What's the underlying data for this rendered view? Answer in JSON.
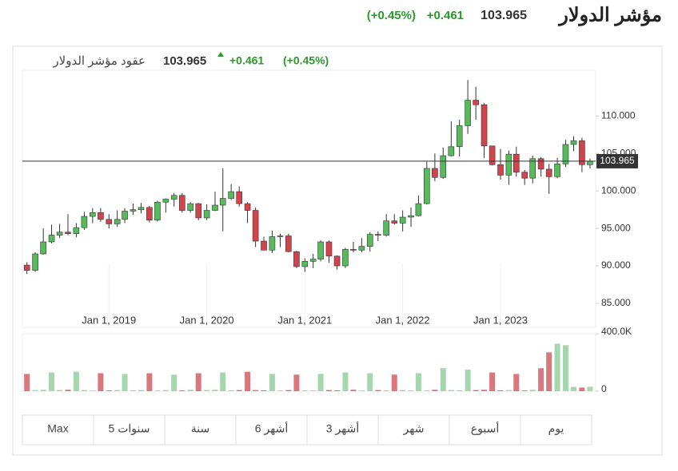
{
  "header": {
    "title": "مؤشر الدولار",
    "last": "103.965",
    "change": "+0.461",
    "change_pct": "(+0.45%)"
  },
  "chart_header": {
    "title": "عقود مؤشر الدولار",
    "last": "103.965",
    "change": "+0.461",
    "change_pct": "(+0.45%)"
  },
  "chart_data": {
    "type": "candlestick",
    "x": [
      "2018-03-01",
      "2018-04-01",
      "2018-05-01",
      "2018-06-01",
      "2018-07-01",
      "2018-08-01",
      "2018-09-01",
      "2018-10-01",
      "2018-11-01",
      "2018-12-01",
      "2019-01-01",
      "2019-02-01",
      "2019-03-01",
      "2019-04-01",
      "2019-05-01",
      "2019-06-01",
      "2019-07-01",
      "2019-08-01",
      "2019-09-01",
      "2019-10-01",
      "2019-11-01",
      "2019-12-01",
      "2020-01-01",
      "2020-02-01",
      "2020-03-01",
      "2020-04-01",
      "2020-05-01",
      "2020-06-01",
      "2020-07-01",
      "2020-08-01",
      "2020-09-01",
      "2020-10-01",
      "2020-11-01",
      "2020-12-01",
      "2021-01-01",
      "2021-02-01",
      "2021-03-01",
      "2021-04-01",
      "2021-05-01",
      "2021-06-01",
      "2021-07-01",
      "2021-08-01",
      "2021-09-01",
      "2021-10-01",
      "2021-11-01",
      "2021-12-01",
      "2022-01-01",
      "2022-02-01",
      "2022-03-01",
      "2022-04-01",
      "2022-05-01",
      "2022-06-01",
      "2022-07-01",
      "2022-08-01",
      "2022-09-01",
      "2022-10-01",
      "2022-11-01",
      "2022-12-01",
      "2023-01-01",
      "2023-02-01",
      "2023-03-01",
      "2023-04-01",
      "2023-05-01",
      "2023-06-01",
      "2023-07-01",
      "2023-08-01",
      "2023-09-01",
      "2023-10-01",
      "2023-11-01",
      "2023-12-01"
    ],
    "open": [
      90.1,
      89.4,
      91.6,
      93.2,
      94.1,
      94.5,
      94.3,
      95.1,
      96.6,
      97.1,
      96.2,
      95.6,
      96.2,
      97.3,
      97.5,
      97.8,
      96.1,
      98.5,
      98.9,
      99.4,
      97.4,
      98.3,
      96.4,
      97.4,
      98.1,
      99.0,
      99.9,
      98.3,
      97.4,
      93.3,
      92.1,
      93.9,
      94.0,
      91.9,
      89.9,
      90.6,
      90.9,
      93.2,
      91.3,
      90.0,
      92.2,
      92.1,
      92.6,
      94.2,
      94.1,
      96.0,
      95.7,
      96.5,
      96.7,
      98.3,
      103.0,
      101.8,
      104.7,
      105.9,
      108.7,
      112.1,
      111.5,
      106.0,
      103.5,
      102.1,
      104.9,
      102.5,
      101.7,
      104.3,
      102.9,
      101.9,
      103.6,
      106.2,
      106.7,
      103.5
    ],
    "high": [
      90.5,
      91.8,
      95.0,
      95.5,
      95.6,
      96.9,
      95.7,
      97.2,
      97.7,
      97.7,
      96.9,
      97.4,
      97.7,
      98.3,
      98.4,
      98.0,
      98.7,
      99.0,
      99.7,
      99.7,
      98.5,
      98.4,
      98.2,
      99.9,
      103.0,
      100.9,
      100.6,
      98.5,
      97.8,
      93.9,
      94.7,
      94.3,
      94.3,
      92.0,
      91.0,
      91.6,
      93.4,
      93.4,
      91.4,
      92.4,
      93.2,
      93.7,
      94.5,
      94.6,
      96.9,
      96.9,
      97.4,
      97.8,
      99.4,
      103.9,
      105.0,
      105.8,
      109.3,
      109.5,
      114.8,
      113.9,
      111.7,
      106.0,
      105.6,
      105.4,
      105.9,
      102.8,
      104.7,
      104.5,
      103.6,
      104.4,
      106.8,
      107.3,
      107.1,
      104.3
    ],
    "low": [
      88.9,
      89.2,
      91.5,
      93.0,
      93.7,
      94.1,
      93.8,
      94.8,
      95.7,
      95.9,
      95.0,
      95.2,
      95.7,
      96.8,
      97.0,
      95.8,
      95.9,
      97.1,
      97.9,
      97.1,
      97.1,
      96.1,
      96.1,
      97.3,
      94.6,
      98.8,
      97.9,
      95.7,
      92.5,
      92.1,
      91.7,
      92.5,
      91.8,
      89.7,
      89.2,
      89.7,
      90.6,
      90.4,
      89.5,
      89.7,
      91.8,
      91.8,
      91.9,
      93.3,
      93.9,
      95.5,
      94.6,
      95.2,
      96.6,
      98.2,
      101.3,
      101.6,
      104.6,
      104.6,
      107.6,
      109.5,
      104.4,
      103.4,
      101.5,
      100.8,
      101.9,
      100.8,
      101.0,
      101.9,
      99.6,
      101.7,
      103.2,
      105.3,
      102.5,
      103.0
    ],
    "close": [
      89.4,
      91.6,
      93.2,
      94.1,
      94.5,
      94.3,
      95.1,
      96.6,
      97.1,
      96.2,
      95.6,
      96.2,
      97.3,
      97.5,
      97.8,
      96.1,
      98.5,
      98.9,
      99.4,
      97.4,
      98.3,
      96.4,
      97.4,
      98.1,
      99.0,
      99.9,
      98.3,
      97.4,
      93.3,
      92.1,
      93.9,
      94.0,
      91.9,
      89.9,
      90.6,
      90.9,
      93.2,
      91.3,
      90.0,
      92.2,
      92.1,
      92.6,
      94.2,
      94.1,
      96.0,
      95.7,
      96.5,
      96.7,
      98.3,
      103.0,
      101.8,
      104.7,
      105.9,
      108.7,
      112.1,
      111.5,
      106.0,
      103.5,
      102.1,
      104.9,
      102.5,
      101.7,
      104.3,
      102.9,
      101.9,
      103.6,
      106.2,
      106.7,
      103.5,
      103.965
    ],
    "up_color": "#57bb5c",
    "down_color": "#d0454d",
    "wick_color": "#333333",
    "ylim": [
      81.8,
      116.1
    ],
    "yticks": [
      {
        "value": 85,
        "label": "85.000"
      },
      {
        "value": 90,
        "label": "90.000"
      },
      {
        "value": 95,
        "label": "95.000"
      },
      {
        "value": 100,
        "label": "100.000"
      },
      {
        "value": 105,
        "label": "105.000"
      },
      {
        "value": 110,
        "label": "110.000"
      }
    ],
    "xlim": [
      "2018-02-12",
      "2023-12-22"
    ],
    "xticks": [
      {
        "value": "2019-01-01",
        "label": "Jan 1, 2019"
      },
      {
        "value": "2020-01-01",
        "label": "Jan 1, 2020"
      },
      {
        "value": "2021-01-01",
        "label": "Jan 1, 2021"
      },
      {
        "value": "2022-01-01",
        "label": "Jan 1, 2022"
      },
      {
        "value": "2023-01-01",
        "label": "Jan 1, 2023"
      }
    ],
    "last_price": 103.965,
    "volume": {
      "values": [
        120000,
        8000,
        10000,
        130000,
        8000,
        10000,
        135000,
        8000,
        5000,
        125000,
        5000,
        8000,
        120000,
        6000,
        8000,
        125000,
        5000,
        8000,
        115000,
        6000,
        10000,
        125000,
        8000,
        10000,
        130000,
        6000,
        8000,
        135000,
        8000,
        6000,
        120000,
        5000,
        8000,
        115000,
        6000,
        5000,
        120000,
        8000,
        6000,
        130000,
        10000,
        6000,
        125000,
        8000,
        6000,
        115000,
        8000,
        5000,
        125000,
        6000,
        10000,
        160000,
        8000,
        6000,
        150000,
        8000,
        10000,
        130000,
        6000,
        8000,
        120000,
        5000,
        10000,
        160000,
        270000,
        330000,
        320000,
        30000,
        25000,
        30000
      ],
      "up_color": "#a5d6ad",
      "down_color": "#d9787c",
      "ylim": [
        0,
        400000
      ],
      "yticks": [
        0,
        {
          "value": 400000,
          "label": "400.0K"
        }
      ]
    }
  },
  "periods": [
    "Max",
    "5 سنوات",
    "سنة",
    "6 أشهر",
    "3 أشهر",
    "شهر",
    "أسبوع",
    "يوم"
  ]
}
